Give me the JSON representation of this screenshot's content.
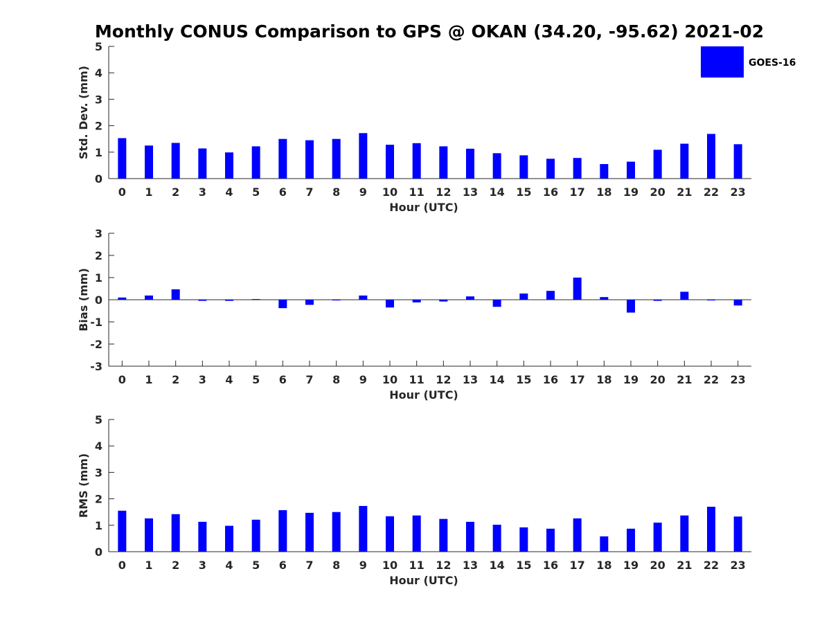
{
  "title": "Monthly CONUS Comparison to GPS @ OKAN (34.20, -95.62) 2021-02",
  "legend": {
    "label": "GOES-16",
    "color": "#0000ff"
  },
  "chart_data": [
    {
      "type": "bar",
      "name": "std-dev",
      "series_name": "GOES-16",
      "color": "#0000ff",
      "xlabel": "Hour (UTC)",
      "ylabel": "Std. Dev. (mm)",
      "ylim": [
        0,
        5
      ],
      "yticks": [
        0,
        1,
        2,
        3,
        4,
        5
      ],
      "categories": [
        "0",
        "1",
        "2",
        "3",
        "4",
        "5",
        "6",
        "7",
        "8",
        "9",
        "10",
        "11",
        "12",
        "13",
        "14",
        "15",
        "16",
        "17",
        "18",
        "19",
        "20",
        "21",
        "22",
        "23"
      ],
      "values": [
        1.53,
        1.25,
        1.35,
        1.14,
        0.99,
        1.22,
        1.5,
        1.45,
        1.5,
        1.72,
        1.28,
        1.34,
        1.22,
        1.13,
        0.96,
        0.88,
        0.75,
        0.78,
        0.55,
        0.64,
        1.09,
        1.32,
        1.69,
        1.3
      ]
    },
    {
      "type": "bar",
      "name": "bias",
      "series_name": "GOES-16",
      "color": "#0000ff",
      "xlabel": "Hour (UTC)",
      "ylabel": "Bias (mm)",
      "ylim": [
        -3,
        3
      ],
      "yticks": [
        -3,
        -2,
        -1,
        0,
        1,
        2,
        3
      ],
      "categories": [
        "0",
        "1",
        "2",
        "3",
        "4",
        "5",
        "6",
        "7",
        "8",
        "9",
        "10",
        "11",
        "12",
        "13",
        "14",
        "15",
        "16",
        "17",
        "18",
        "19",
        "20",
        "21",
        "22",
        "23"
      ],
      "values": [
        0.1,
        0.19,
        0.47,
        -0.05,
        -0.05,
        0.03,
        -0.38,
        -0.23,
        -0.02,
        0.19,
        -0.35,
        -0.12,
        -0.08,
        0.15,
        -0.32,
        0.28,
        0.4,
        1.0,
        0.12,
        -0.58,
        -0.05,
        0.36,
        -0.01,
        -0.26
      ]
    },
    {
      "type": "bar",
      "name": "rms",
      "series_name": "GOES-16",
      "color": "#0000ff",
      "xlabel": "Hour (UTC)",
      "ylabel": "RMS (mm)",
      "ylim": [
        0,
        5
      ],
      "yticks": [
        0,
        1,
        2,
        3,
        4,
        5
      ],
      "categories": [
        "0",
        "1",
        "2",
        "3",
        "4",
        "5",
        "6",
        "7",
        "8",
        "9",
        "10",
        "11",
        "12",
        "13",
        "14",
        "15",
        "16",
        "17",
        "18",
        "19",
        "20",
        "21",
        "22",
        "23"
      ],
      "values": [
        1.55,
        1.26,
        1.42,
        1.13,
        0.98,
        1.21,
        1.57,
        1.47,
        1.5,
        1.73,
        1.34,
        1.37,
        1.24,
        1.13,
        1.02,
        0.92,
        0.87,
        1.26,
        0.58,
        0.87,
        1.1,
        1.37,
        1.7,
        1.33
      ]
    }
  ]
}
